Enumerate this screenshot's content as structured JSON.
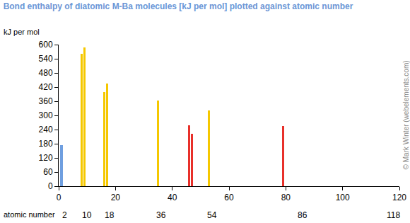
{
  "chart_data": {
    "type": "bar",
    "title": "Bond enthalpy of diatomic M-Ba molecules [kJ per mol] plotted against atomic number",
    "y_label": "kJ per mol",
    "x_label": "atomic number",
    "x": [
      1,
      8,
      9,
      16,
      17,
      35,
      46,
      47,
      53,
      79
    ],
    "values": [
      175,
      562,
      587,
      400,
      436,
      363,
      258,
      222,
      322,
      255
    ],
    "colors": [
      "#6f9fe0",
      "#f5c800",
      "#f5c800",
      "#f5c800",
      "#f5c800",
      "#f5c800",
      "#e8302a",
      "#e8302a",
      "#f5c800",
      "#e8302a"
    ],
    "xlim": [
      0,
      120
    ],
    "xticks": [
      0,
      20,
      40,
      60,
      80,
      100,
      120
    ],
    "x_marks": [
      2,
      10,
      18,
      36,
      54,
      86,
      118
    ],
    "ylim": [
      0,
      600
    ],
    "yticks": [
      0,
      60,
      120,
      180,
      240,
      300,
      360,
      420,
      480,
      540,
      600
    ],
    "credit": "© Mark Winter (webelements.com)",
    "grid": false
  }
}
